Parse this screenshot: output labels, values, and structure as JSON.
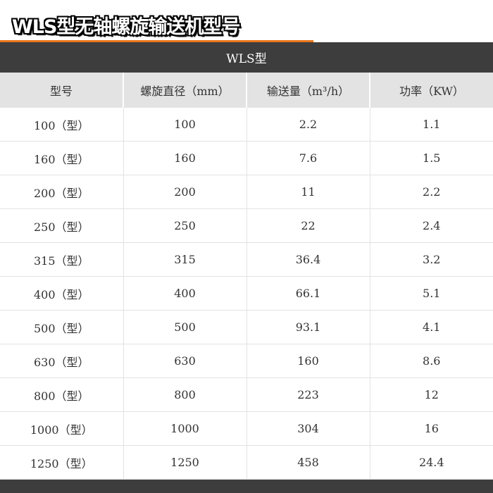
{
  "title": "WLS型无轴螺旋输送机型号",
  "colors": {
    "accent": "#e8761c",
    "band": "#3d3d3d",
    "header_bg": "#e3e3e3"
  },
  "table": {
    "caption": "WLS型",
    "headers": [
      "型号",
      "螺旋直径（mm）",
      "输送量（m³/h）",
      "功率（KW）"
    ],
    "rows": [
      [
        "100（型）",
        "100",
        "2.2",
        "1.1"
      ],
      [
        "160（型）",
        "160",
        "7.6",
        "1.5"
      ],
      [
        "200（型）",
        "200",
        "11",
        "2.2"
      ],
      [
        "250（型）",
        "250",
        "22",
        "2.4"
      ],
      [
        "315（型）",
        "315",
        "36.4",
        "3.2"
      ],
      [
        "400（型）",
        "400",
        "66.1",
        "5.1"
      ],
      [
        "500（型）",
        "500",
        "93.1",
        "4.1"
      ],
      [
        "630（型）",
        "630",
        "160",
        "8.6"
      ],
      [
        "800（型）",
        "800",
        "223",
        "12"
      ],
      [
        "1000（型）",
        "1000",
        "304",
        "16"
      ],
      [
        "1250（型）",
        "1250",
        "458",
        "24.4"
      ]
    ]
  }
}
